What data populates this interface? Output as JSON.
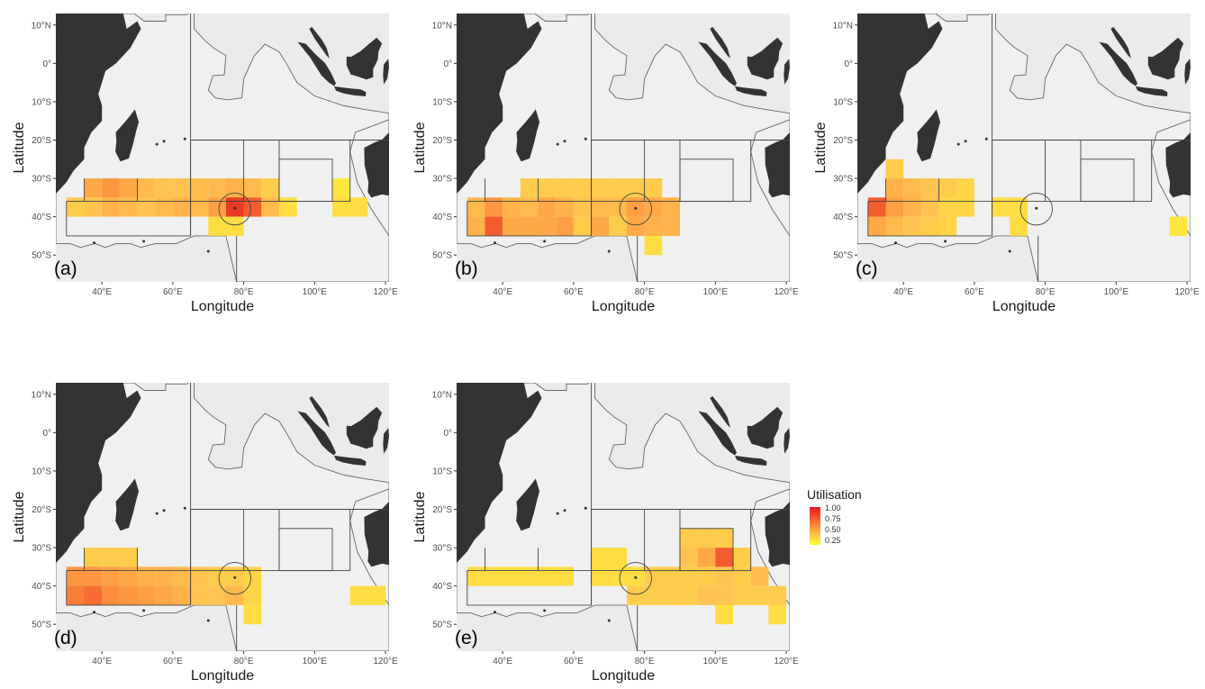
{
  "figure": {
    "x_axis_title": "Longitude",
    "y_axis_title": "Latitude",
    "lon_ticks": [
      "40°E",
      "60°E",
      "80°E",
      "100°E",
      "120°E"
    ],
    "lat_ticks": [
      "10°N",
      "0°",
      "10°S",
      "20°S",
      "30°S",
      "40°S",
      "50°S"
    ],
    "colors": {
      "land": "#333333",
      "eez": "#f0f0f0",
      "background": "#ebebeb",
      "border": "#666666"
    }
  },
  "legend": {
    "title": "Utilisation",
    "labels": [
      "1.00",
      "0.75",
      "0.50",
      "0.25"
    ],
    "colors": [
      "#e31a1c",
      "#fd8d3c",
      "#fec44f",
      "#ffff33"
    ]
  },
  "panels": [
    {
      "tag": "(a)",
      "cells": [
        [
          35,
          -30,
          0.5
        ],
        [
          40,
          -30,
          0.6
        ],
        [
          45,
          -30,
          0.5
        ],
        [
          50,
          -30,
          0.4
        ],
        [
          55,
          -30,
          0.35
        ],
        [
          60,
          -30,
          0.35
        ],
        [
          65,
          -30,
          0.4
        ],
        [
          70,
          -30,
          0.4
        ],
        [
          75,
          -30,
          0.45
        ],
        [
          80,
          -30,
          0.4
        ],
        [
          85,
          -30,
          0.3
        ],
        [
          30,
          -35,
          0.3
        ],
        [
          35,
          -35,
          0.35
        ],
        [
          40,
          -35,
          0.45
        ],
        [
          45,
          -35,
          0.4
        ],
        [
          50,
          -35,
          0.35
        ],
        [
          55,
          -35,
          0.4
        ],
        [
          60,
          -35,
          0.45
        ],
        [
          65,
          -35,
          0.4
        ],
        [
          70,
          -35,
          0.55
        ],
        [
          75,
          -35,
          0.9
        ],
        [
          80,
          -35,
          0.8
        ],
        [
          85,
          -35,
          0.4
        ],
        [
          90,
          -35,
          0.2
        ],
        [
          70,
          -40,
          0.2
        ],
        [
          75,
          -40,
          0.2
        ],
        [
          105,
          -30,
          0.15
        ],
        [
          105,
          -35,
          0.2
        ],
        [
          110,
          -35,
          0.2
        ]
      ]
    },
    {
      "tag": "(b)",
      "cells": [
        [
          45,
          -30,
          0.3
        ],
        [
          50,
          -30,
          0.3
        ],
        [
          55,
          -30,
          0.3
        ],
        [
          60,
          -30,
          0.3
        ],
        [
          65,
          -30,
          0.3
        ],
        [
          70,
          -30,
          0.3
        ],
        [
          75,
          -30,
          0.3
        ],
        [
          80,
          -30,
          0.3
        ],
        [
          30,
          -35,
          0.4
        ],
        [
          35,
          -35,
          0.6
        ],
        [
          40,
          -35,
          0.45
        ],
        [
          45,
          -35,
          0.4
        ],
        [
          50,
          -35,
          0.5
        ],
        [
          55,
          -35,
          0.45
        ],
        [
          60,
          -35,
          0.35
        ],
        [
          65,
          -35,
          0.4
        ],
        [
          70,
          -35,
          0.4
        ],
        [
          75,
          -35,
          0.55
        ],
        [
          80,
          -35,
          0.5
        ],
        [
          85,
          -35,
          0.45
        ],
        [
          30,
          -40,
          0.45
        ],
        [
          35,
          -40,
          0.8
        ],
        [
          40,
          -40,
          0.5
        ],
        [
          45,
          -40,
          0.5
        ],
        [
          50,
          -40,
          0.5
        ],
        [
          55,
          -40,
          0.55
        ],
        [
          60,
          -40,
          0.3
        ],
        [
          65,
          -40,
          0.5
        ],
        [
          70,
          -40,
          0.3
        ],
        [
          75,
          -40,
          0.5
        ],
        [
          80,
          -40,
          0.45
        ],
        [
          85,
          -40,
          0.45
        ],
        [
          80,
          -45,
          0.2
        ]
      ]
    },
    {
      "tag": "(c)",
      "cells": [
        [
          35,
          -25,
          0.3
        ],
        [
          35,
          -30,
          0.45
        ],
        [
          40,
          -30,
          0.4
        ],
        [
          45,
          -30,
          0.35
        ],
        [
          50,
          -30,
          0.3
        ],
        [
          55,
          -30,
          0.25
        ],
        [
          30,
          -35,
          0.8
        ],
        [
          35,
          -35,
          0.55
        ],
        [
          40,
          -35,
          0.45
        ],
        [
          45,
          -35,
          0.35
        ],
        [
          50,
          -35,
          0.25
        ],
        [
          55,
          -35,
          0.25
        ],
        [
          65,
          -35,
          0.2
        ],
        [
          70,
          -35,
          0.2
        ],
        [
          30,
          -40,
          0.5
        ],
        [
          35,
          -40,
          0.4
        ],
        [
          40,
          -40,
          0.35
        ],
        [
          45,
          -40,
          0.3
        ],
        [
          50,
          -40,
          0.25
        ],
        [
          70,
          -40,
          0.2
        ],
        [
          115,
          -40,
          0.15
        ]
      ]
    },
    {
      "tag": "(d)",
      "cells": [
        [
          35,
          -30,
          0.3
        ],
        [
          40,
          -30,
          0.3
        ],
        [
          45,
          -30,
          0.3
        ],
        [
          30,
          -35,
          0.6
        ],
        [
          35,
          -35,
          0.6
        ],
        [
          40,
          -35,
          0.55
        ],
        [
          45,
          -35,
          0.5
        ],
        [
          50,
          -35,
          0.45
        ],
        [
          55,
          -35,
          0.45
        ],
        [
          60,
          -35,
          0.4
        ],
        [
          65,
          -35,
          0.35
        ],
        [
          70,
          -35,
          0.3
        ],
        [
          75,
          -35,
          0.3
        ],
        [
          80,
          -35,
          0.25
        ],
        [
          30,
          -40,
          0.7
        ],
        [
          35,
          -40,
          0.75
        ],
        [
          40,
          -40,
          0.65
        ],
        [
          45,
          -40,
          0.6
        ],
        [
          50,
          -40,
          0.55
        ],
        [
          55,
          -40,
          0.5
        ],
        [
          60,
          -40,
          0.45
        ],
        [
          65,
          -40,
          0.35
        ],
        [
          70,
          -40,
          0.35
        ],
        [
          75,
          -40,
          0.4
        ],
        [
          80,
          -40,
          0.25
        ],
        [
          80,
          -45,
          0.2
        ],
        [
          110,
          -40,
          0.2
        ],
        [
          115,
          -40,
          0.2
        ]
      ]
    },
    {
      "tag": "(e)",
      "cells": [
        [
          30,
          -35,
          0.2
        ],
        [
          35,
          -35,
          0.2
        ],
        [
          40,
          -35,
          0.2
        ],
        [
          45,
          -35,
          0.2
        ],
        [
          50,
          -35,
          0.2
        ],
        [
          55,
          -35,
          0.2
        ],
        [
          65,
          -30,
          0.2
        ],
        [
          70,
          -30,
          0.2
        ],
        [
          65,
          -35,
          0.2
        ],
        [
          70,
          -35,
          0.2
        ],
        [
          75,
          -35,
          0.2
        ],
        [
          90,
          -25,
          0.3
        ],
        [
          95,
          -25,
          0.3
        ],
        [
          100,
          -25,
          0.3
        ],
        [
          90,
          -30,
          0.35
        ],
        [
          95,
          -30,
          0.5
        ],
        [
          100,
          -30,
          0.8
        ],
        [
          105,
          -30,
          0.3
        ],
        [
          80,
          -35,
          0.3
        ],
        [
          85,
          -35,
          0.3
        ],
        [
          90,
          -35,
          0.3
        ],
        [
          95,
          -35,
          0.3
        ],
        [
          100,
          -35,
          0.35
        ],
        [
          105,
          -35,
          0.3
        ],
        [
          110,
          -35,
          0.4
        ],
        [
          75,
          -40,
          0.3
        ],
        [
          80,
          -40,
          0.3
        ],
        [
          85,
          -40,
          0.3
        ],
        [
          90,
          -40,
          0.3
        ],
        [
          95,
          -40,
          0.35
        ],
        [
          100,
          -40,
          0.35
        ],
        [
          105,
          -40,
          0.3
        ],
        [
          110,
          -40,
          0.3
        ],
        [
          115,
          -40,
          0.3
        ],
        [
          100,
          -45,
          0.2
        ],
        [
          115,
          -45,
          0.2
        ]
      ]
    }
  ]
}
